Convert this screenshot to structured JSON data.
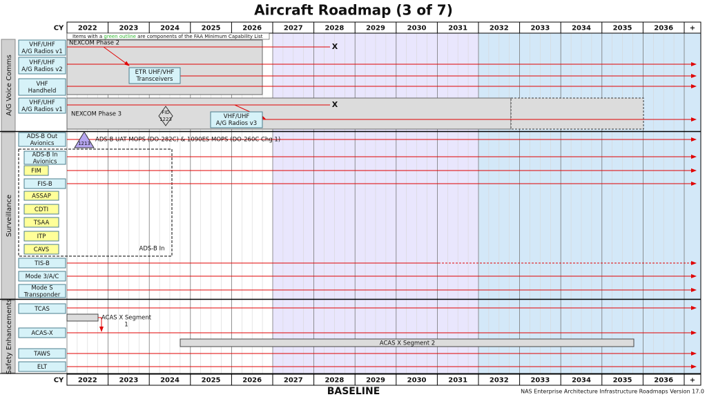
{
  "title": "Aircraft Roadmap (3 of 7)",
  "cy_label": "CY",
  "years": [
    "2022",
    "2023",
    "2024",
    "2025",
    "2026",
    "2027",
    "2028",
    "2029",
    "2030",
    "2031",
    "2032",
    "2033",
    "2034",
    "2035",
    "2036",
    "+"
  ],
  "note": {
    "prefix": "Items with a ",
    "highlight": "green outline",
    "suffix": " are components of the FAA Minimum Capability List"
  },
  "groups": [
    "A/G Voice Comms",
    "Surveillance",
    "Safety Enhancements"
  ],
  "rows": [
    {
      "label": [
        "VHF/UHF",
        "A/G Radios v1"
      ]
    },
    {
      "label": [
        "VHF/UHF",
        "A/G Radios v2"
      ]
    },
    {
      "label": [
        "VHF",
        "Handheld"
      ]
    },
    {
      "label": [
        "VHF/UHF",
        "A/G Radios v1"
      ]
    },
    {
      "label": [
        "ADS-B Out",
        "Avionics"
      ]
    },
    {
      "label": [
        "ADS-B In",
        "Avionics"
      ]
    },
    {
      "label": [
        "FIM"
      ]
    },
    {
      "label": [
        "FIS-B"
      ]
    },
    {
      "label": [
        "ASSAP"
      ]
    },
    {
      "label": [
        "CDTI"
      ]
    },
    {
      "label": [
        "TSAA"
      ]
    },
    {
      "label": [
        "ITP"
      ]
    },
    {
      "label": [
        "CAVS"
      ]
    },
    {
      "label": [
        "TIS-B"
      ]
    },
    {
      "label": [
        "Mode 3/A/C"
      ]
    },
    {
      "label": [
        "Mode S",
        "Transponder"
      ]
    },
    {
      "label": [
        "TCAS"
      ]
    },
    {
      "label": [
        "ACAS-X"
      ]
    },
    {
      "label": [
        "TAWS"
      ]
    },
    {
      "label": [
        "ELT"
      ]
    }
  ],
  "annotations": {
    "nexcom_phase2": "NEXCOM Phase 2",
    "nexcom_phase3": "NEXCOM Phase 3",
    "etr": [
      "ETR UHF/VHF",
      "Transceivers"
    ],
    "radios_v3": [
      "VHF/UHF",
      "A/G Radios v3"
    ],
    "fid": [
      "FID",
      "1223"
    ],
    "x_marks": [
      "X",
      "X"
    ],
    "adsb_triangle": "1213",
    "adsb_mops": "ADS-B UAT MOPS (DO-282C) & 1090ES MOPS (DO-260C Chg 1)",
    "adsb_in": "ADS-B In",
    "acas_seg1": [
      "ACAS X Segment",
      "1"
    ],
    "acas_seg2": "ACAS X Segment 2"
  },
  "footer": {
    "baseline": "BASELINE",
    "version": "NAS Enterprise Architecture Infrastructure Roadmaps Version 17.0"
  }
}
